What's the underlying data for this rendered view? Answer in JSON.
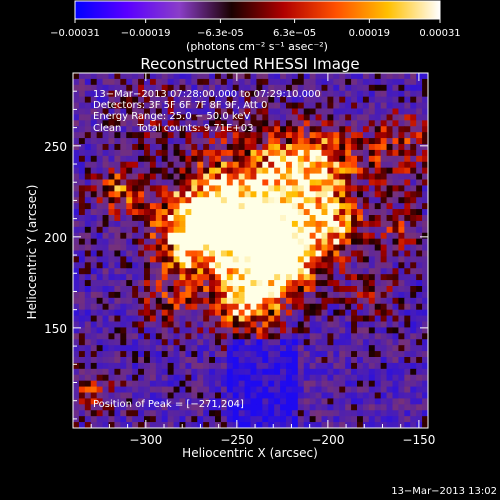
{
  "colorbar": {
    "ticks": [
      "-0.00031",
      "-0.00019",
      "-6.3e-05",
      "6.3e-05",
      "0.00019",
      "0.00031"
    ],
    "units": "(photons cm⁻² s⁻¹ asec⁻²)",
    "range": [
      -0.00031,
      0.00031
    ],
    "stops": [
      "#0000ff",
      "#5a00ff",
      "#8a3ec8",
      "#1a0000",
      "#b00000",
      "#ff5000",
      "#ffc000",
      "#ffffff"
    ]
  },
  "chart_data": {
    "type": "heatmap",
    "title": "Reconstructed RHESSI Image",
    "xlabel": "Heliocentric X (arcsec)",
    "ylabel": "Heliocentric Y (arcsec)",
    "xlim": [
      -340,
      -145
    ],
    "ylim": [
      95,
      290
    ],
    "xticks": [
      -300,
      -250,
      -200,
      -150
    ],
    "yticks": [
      150,
      200,
      250
    ],
    "xtick_labels": [
      "−300",
      "−250",
      "−200",
      "−150"
    ],
    "ytick_labels": [
      "150",
      "200",
      "250"
    ],
    "peak": [
      -271,
      204
    ],
    "annotations": {
      "time": "13−Mar−2013 07:28:00.000 to 07:29:10.000",
      "detectors": "Detectors: 3F 5F 6F 7F 8F 9F, Att 0",
      "energy": "Energy Range: 25.0 − 50.0 keV",
      "clean": "Clean     Total counts: 9.71E+03",
      "peak_text": "Position of Peak = [−271,204]"
    }
  },
  "timestamp": "13−Mar−2013 13:02"
}
